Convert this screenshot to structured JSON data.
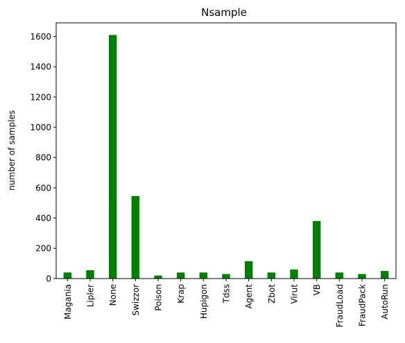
{
  "chart_data": {
    "type": "bar",
    "title": "Nsample",
    "xlabel": "",
    "ylabel": "number of samples",
    "categories": [
      "Magania",
      "Lipler",
      "None",
      "Swizzor",
      "Poison",
      "Krap",
      "Hupigon",
      "Tdss",
      "Agent",
      "Zbot",
      "Virut",
      "VB",
      "FraudLoad",
      "FraudPack",
      "AutoRun"
    ],
    "values": [
      40,
      55,
      1610,
      545,
      20,
      40,
      40,
      30,
      115,
      40,
      60,
      380,
      40,
      30,
      50
    ],
    "ylim": [
      0,
      1690
    ],
    "yticks": [
      0,
      200,
      400,
      600,
      800,
      1000,
      1200,
      1400,
      1600
    ],
    "bar_color": "#008000",
    "grid": false
  }
}
